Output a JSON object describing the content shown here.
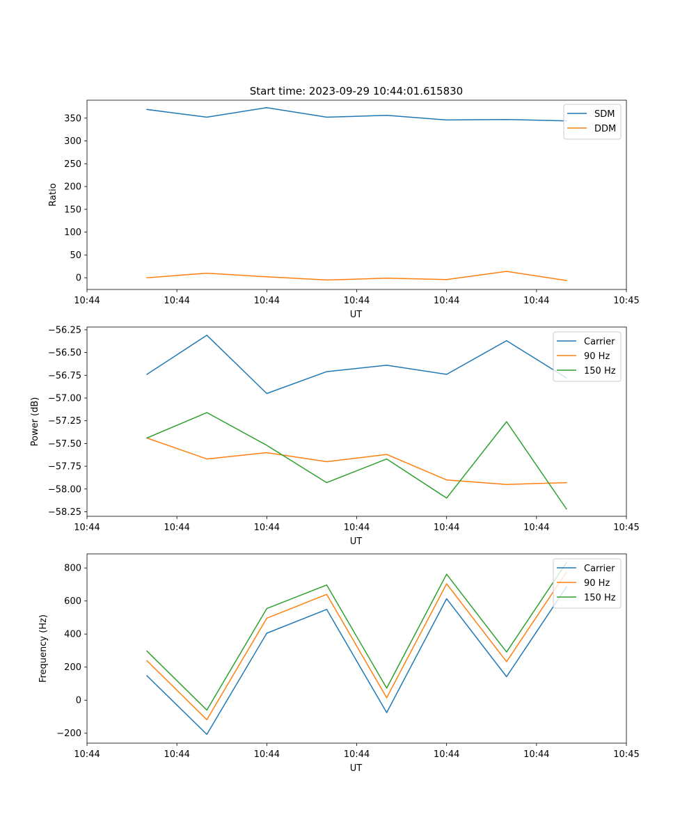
{
  "figure_title": "Start time: 2023-09-29 10:44:01.615830",
  "colors": {
    "c0": "#1f77b4",
    "c1": "#ff7f0e",
    "c2": "#2ca02c"
  },
  "chart_data": [
    {
      "type": "line",
      "title": "Start time: 2023-09-29 10:44:01.615830",
      "xlabel": "UT",
      "ylabel": "Ratio",
      "xlim": [
        0,
        9
      ],
      "x": [
        1,
        2,
        3,
        4,
        5,
        6,
        7,
        8
      ],
      "xticks": [
        0,
        1.5,
        3,
        4.5,
        6,
        7.5,
        9
      ],
      "xtick_labels": [
        "10:44",
        "10:44",
        "10:44",
        "10:44",
        "10:44",
        "10:44",
        "10:45"
      ],
      "ylim": [
        -25.7,
        389.3
      ],
      "yticks": [
        0,
        50,
        100,
        150,
        200,
        250,
        300,
        350
      ],
      "ytick_labels": [
        "0",
        "50",
        "100",
        "150",
        "200",
        "250",
        "300",
        "350"
      ],
      "legend": "top-right",
      "series": [
        {
          "name": "SDM",
          "color": "#1f77b4",
          "values": [
            369,
            352,
            373,
            352,
            356,
            346,
            347,
            344
          ]
        },
        {
          "name": "DDM",
          "color": "#ff7f0e",
          "values": [
            0,
            10,
            2,
            -5,
            -1,
            -4,
            14,
            -6
          ]
        }
      ]
    },
    {
      "type": "line",
      "title": "",
      "xlabel": "UT",
      "ylabel": "Power (dB)",
      "xlim": [
        0,
        9
      ],
      "x": [
        1,
        2,
        3,
        4,
        5,
        6,
        7,
        8
      ],
      "xticks": [
        0,
        1.5,
        3,
        4.5,
        6,
        7.5,
        9
      ],
      "xtick_labels": [
        "10:44",
        "10:44",
        "10:44",
        "10:44",
        "10:44",
        "10:44",
        "10:45"
      ],
      "ylim": [
        -58.3,
        -56.22
      ],
      "yticks": [
        -58.25,
        -58.0,
        -57.75,
        -57.5,
        -57.25,
        -57.0,
        -56.75,
        -56.5,
        -56.25
      ],
      "ytick_labels": [
        "−58.25",
        "−58.00",
        "−57.75",
        "−57.50",
        "−57.25",
        "−57.00",
        "−56.75",
        "−56.50",
        "−56.25"
      ],
      "legend": "top-right",
      "series": [
        {
          "name": "Carrier",
          "color": "#1f77b4",
          "values": [
            -56.74,
            -56.31,
            -56.95,
            -56.71,
            -56.64,
            -56.74,
            -56.37,
            -56.78
          ]
        },
        {
          "name": "90 Hz",
          "color": "#ff7f0e",
          "values": [
            -57.44,
            -57.67,
            -57.6,
            -57.7,
            -57.62,
            -57.9,
            -57.95,
            -57.93
          ]
        },
        {
          "name": "150 Hz",
          "color": "#2ca02c",
          "values": [
            -57.44,
            -57.16,
            -57.52,
            -57.93,
            -57.67,
            -58.1,
            -57.26,
            -58.22
          ]
        }
      ]
    },
    {
      "type": "line",
      "title": "",
      "xlabel": "UT",
      "ylabel": "Frequency (Hz)",
      "xlim": [
        0,
        9
      ],
      "x": [
        1,
        2,
        3,
        4,
        5,
        6,
        7,
        8
      ],
      "xticks": [
        0,
        1.5,
        3,
        4.5,
        6,
        7.5,
        9
      ],
      "xtick_labels": [
        "10:44",
        "10:44",
        "10:44",
        "10:44",
        "10:44",
        "10:44",
        "10:45"
      ],
      "ylim": [
        -260,
        885
      ],
      "yticks": [
        -200,
        0,
        200,
        400,
        600,
        800
      ],
      "ytick_labels": [
        "−200",
        "0",
        "200",
        "400",
        "600",
        "800"
      ],
      "legend": "top-right",
      "series": [
        {
          "name": "Carrier",
          "color": "#1f77b4",
          "values": [
            148,
            -207,
            405,
            549,
            -75,
            614,
            142,
            685
          ]
        },
        {
          "name": "90 Hz",
          "color": "#ff7f0e",
          "values": [
            239,
            -118,
            496,
            640,
            15,
            704,
            233,
            775
          ]
        },
        {
          "name": "150 Hz",
          "color": "#2ca02c",
          "values": [
            297,
            -60,
            554,
            697,
            73,
            762,
            291,
            833
          ]
        }
      ]
    }
  ]
}
